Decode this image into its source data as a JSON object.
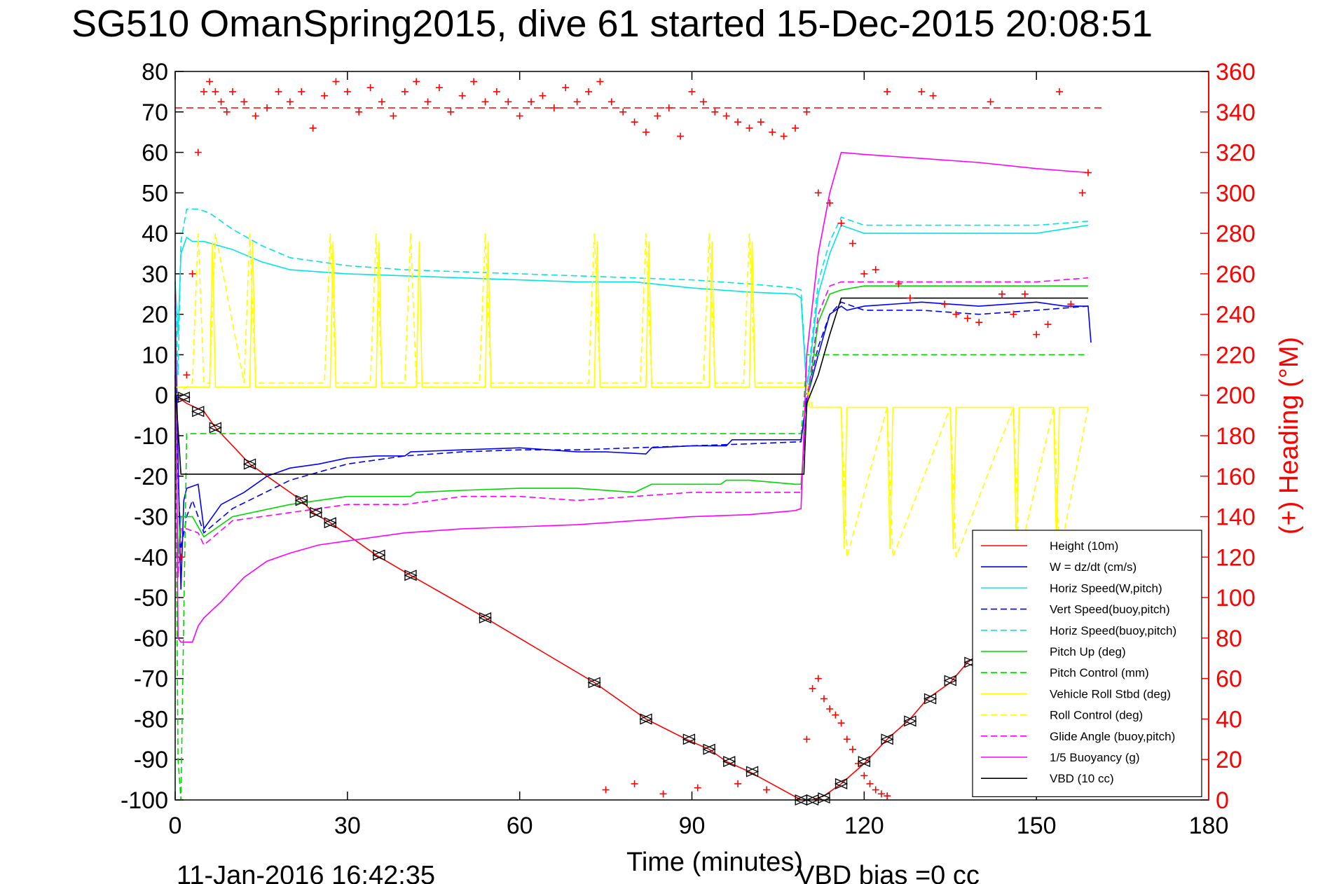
{
  "chart_data": {
    "type": "line",
    "title": "SG510 OmanSpring2015, dive 61 started 15-Dec-2015 20:08:51",
    "xlabel": "Time (minutes)",
    "ylabel": "",
    "y2label": "(+) Heading (°M)",
    "xlim": [
      0,
      180
    ],
    "ylim": [
      -100,
      80
    ],
    "y2lim": [
      0,
      360
    ],
    "xticks": [
      "0",
      "30",
      "60",
      "90",
      "120",
      "150",
      "180"
    ],
    "yticks": [
      "80",
      "70",
      "60",
      "50",
      "40",
      "30",
      "20",
      "10",
      "0",
      "-10",
      "-20",
      "-30",
      "-40",
      "-50",
      "-60",
      "-70",
      "-80",
      "-90",
      "-100"
    ],
    "y2ticks": [
      "360",
      "340",
      "320",
      "300",
      "280",
      "260",
      "240",
      "220",
      "200",
      "180",
      "160",
      "140",
      "120",
      "100",
      "80",
      "60",
      "40",
      "20",
      "0"
    ],
    "footer_left": "11-Jan-2016 16:42:35",
    "footer_right": "VBD bias =0 cc",
    "grid": false,
    "legend_position": "bottom-right",
    "heading_reference": 342,
    "series": [
      {
        "name": "Height (10m)",
        "color": "#ff0000",
        "style": "solid",
        "x": [
          0,
          0.5,
          1,
          1.5,
          2,
          5,
          7,
          13,
          22,
          24,
          27,
          35,
          41,
          54,
          73,
          82,
          89,
          93,
          96,
          100,
          109,
          110,
          111,
          113,
          116,
          120,
          124,
          128,
          131,
          135,
          138,
          142,
          146,
          150,
          153,
          157,
          159
        ],
        "y": [
          -1,
          -1,
          -1,
          -1.5,
          -2,
          -4,
          -8,
          -17,
          -26,
          -29,
          -31.5,
          -39.5,
          -44.5,
          -55,
          -71,
          -80,
          -85,
          -87.5,
          -90.5,
          -93,
          -100,
          -100,
          -100,
          -99,
          -96,
          -91,
          -85,
          -80,
          -75,
          -71,
          -66,
          -62,
          -57,
          -52,
          -47,
          -41,
          -37
        ]
      },
      {
        "name": "W = dz/dt (cm/s)",
        "color": "#0000ff",
        "style": "solid",
        "x": [
          0,
          0.5,
          1,
          1.5,
          2,
          4,
          5,
          8,
          12,
          16,
          20,
          25,
          30,
          35,
          40,
          41,
          50,
          60,
          70,
          75,
          82,
          83,
          90,
          96,
          97,
          105,
          109,
          110,
          112,
          114,
          116,
          117,
          120,
          130,
          140,
          150,
          155,
          159,
          159.5
        ],
        "y": [
          22,
          -15,
          -48,
          -26,
          -23,
          -22,
          -33,
          -27,
          -24,
          -20,
          -18,
          -17,
          -15.5,
          -15,
          -15,
          -14,
          -13.5,
          -13,
          -14,
          -14,
          -14.5,
          -13,
          -12.5,
          -12.5,
          -11,
          -11,
          -11,
          -1,
          10,
          20,
          22,
          21,
          22,
          23,
          22,
          23,
          22,
          22,
          13
        ]
      },
      {
        "name": "Horiz Speed(W,pitch)",
        "color": "#00e5e5",
        "style": "solid",
        "x": [
          0,
          0.5,
          1,
          2,
          3,
          5,
          10,
          15,
          20,
          30,
          40,
          50,
          60,
          70,
          80,
          90,
          100,
          108,
          109,
          110,
          112,
          114,
          116,
          118,
          120,
          130,
          140,
          150,
          159
        ],
        "y": [
          28,
          15,
          35,
          39,
          38,
          38,
          36,
          33,
          31,
          30,
          29.5,
          29,
          28.5,
          28,
          28,
          26.5,
          25.5,
          25,
          24,
          1,
          25,
          35,
          42,
          41,
          40,
          40,
          40,
          40,
          42
        ]
      },
      {
        "name": "Vert Speed(buoy,pitch)",
        "color": "#0000ff",
        "style": "dashed",
        "x": [
          0,
          0.5,
          1,
          2,
          3,
          5,
          10,
          20,
          30,
          40,
          50,
          60,
          70,
          80,
          90,
          100,
          109,
          110,
          112,
          114,
          116,
          120,
          130,
          140,
          150,
          159
        ],
        "y": [
          5,
          -20,
          -38,
          -30,
          -26,
          -34,
          -28,
          -21,
          -17,
          -15,
          -14,
          -13.5,
          -13.5,
          -13,
          -12.5,
          -12,
          -11.5,
          0,
          12,
          20,
          23,
          21,
          21,
          20,
          21,
          22
        ]
      },
      {
        "name": "Horiz Speed(buoy,pitch)",
        "color": "#00e5e5",
        "style": "dashed",
        "x": [
          0,
          0.5,
          1,
          2,
          4,
          6,
          10,
          15,
          20,
          30,
          40,
          50,
          60,
          70,
          80,
          90,
          100,
          108,
          109,
          110,
          112,
          114,
          116,
          118,
          120,
          130,
          140,
          150,
          159
        ],
        "y": [
          28,
          5,
          38,
          46,
          46,
          45,
          41,
          37,
          34,
          32,
          31,
          30.5,
          30,
          29.5,
          29,
          28.5,
          27.5,
          26.5,
          26,
          2,
          28,
          38,
          44,
          43,
          42,
          42,
          42,
          42,
          43
        ]
      },
      {
        "name": "Pitch Up (deg)",
        "color": "#00d800",
        "style": "solid",
        "x": [
          0,
          0.5,
          1,
          2,
          3,
          5,
          10,
          20,
          30,
          41,
          42,
          50,
          60,
          70,
          80,
          83,
          90,
          95,
          96,
          100,
          108,
          109,
          110,
          112,
          114,
          116,
          120,
          130,
          140,
          150,
          159
        ],
        "y": [
          0,
          -40,
          -30,
          -30,
          -30,
          -35,
          -30,
          -27,
          -25,
          -25,
          -24,
          -23.5,
          -23,
          -23,
          -24,
          -22,
          -22,
          -22,
          -21,
          -21,
          -22,
          -22,
          -3,
          18,
          25,
          26,
          27,
          27,
          27,
          27,
          27
        ]
      },
      {
        "name": "Pitch Control (mm)",
        "color": "#00d800",
        "style": "dashed",
        "x": [
          0,
          0.5,
          1,
          2,
          4,
          6,
          108,
          109,
          109.5,
          110,
          112,
          114,
          116,
          120,
          159
        ],
        "y": [
          0,
          -90,
          -100,
          -9.5,
          -9.5,
          -9.5,
          -9.5,
          -9.5,
          -2,
          10,
          10,
          10,
          10,
          10,
          10
        ]
      },
      {
        "name": "Vehicle Roll Stbd (deg)",
        "color": "#ffff00",
        "style": "solid",
        "x": [
          0,
          3,
          5,
          6,
          6.5,
          7,
          13,
          13.5,
          14,
          27,
          27.5,
          28,
          35,
          35.5,
          36,
          42,
          42.5,
          43,
          54,
          54.5,
          55,
          73,
          73.5,
          74,
          82,
          82.5,
          83,
          93,
          93.5,
          94,
          100,
          100.5,
          101,
          110,
          110.5,
          111,
          116,
          116.5,
          117,
          124,
          124.5,
          125,
          135,
          135.5,
          136,
          146,
          146.5,
          147,
          153,
          153.5,
          154,
          159
        ],
        "y": [
          2,
          2,
          2,
          2,
          38,
          2,
          2,
          38,
          2,
          2,
          38,
          2,
          2,
          38,
          2,
          2,
          38,
          2,
          2,
          38,
          2,
          2,
          38,
          2,
          2,
          38,
          2,
          2,
          38,
          2,
          2,
          38,
          2,
          2,
          -3,
          -3,
          -3,
          -38,
          -3,
          -3,
          -38,
          -3,
          -3,
          -38,
          -3,
          -3,
          -38,
          -3,
          -3,
          -38,
          -3,
          -3
        ]
      },
      {
        "name": "Roll Control (deg)",
        "color": "#ffff00",
        "style": "dashed",
        "x": [
          0,
          3,
          4,
          5,
          6,
          7,
          12,
          13,
          14,
          26,
          27,
          28,
          34,
          35,
          36,
          40,
          41,
          42,
          53,
          54,
          55,
          72,
          73,
          74,
          81,
          82,
          83,
          92,
          93,
          94,
          99,
          100,
          101,
          110,
          111,
          116,
          117,
          124,
          125,
          135,
          136,
          146,
          147,
          153,
          154,
          159
        ],
        "y": [
          0,
          3,
          40,
          3,
          3,
          40,
          3,
          40,
          3,
          3,
          40,
          3,
          3,
          40,
          3,
          3,
          40,
          3,
          3,
          40,
          3,
          3,
          40,
          3,
          3,
          40,
          3,
          3,
          40,
          3,
          3,
          40,
          3,
          3,
          -3,
          -3,
          -40,
          -3,
          -40,
          -3,
          -40,
          -3,
          -40,
          -3,
          -40,
          -3
        ]
      },
      {
        "name": "Glide Angle (buoy,pitch)",
        "color": "#ff00ff",
        "style": "dashed",
        "x": [
          0,
          0.5,
          1,
          2,
          4,
          5,
          10,
          20,
          30,
          40,
          50,
          60,
          70,
          80,
          90,
          100,
          108,
          109,
          110,
          112,
          114,
          116,
          120,
          130,
          140,
          150,
          159
        ],
        "y": [
          0,
          -45,
          -33,
          -33,
          -34,
          -37,
          -31,
          -29,
          -27,
          -27,
          -25,
          -25,
          -26,
          -25,
          -24,
          -24,
          -24,
          -24,
          -2,
          20,
          27,
          28,
          28,
          28,
          28,
          28,
          29
        ]
      },
      {
        "name": "1/5 Buoyancy (g)",
        "color": "#ff00ff",
        "style": "solid",
        "x": [
          0,
          0.5,
          1,
          3,
          4,
          5,
          8,
          12,
          16,
          20,
          25,
          30,
          40,
          50,
          60,
          70,
          80,
          90,
          100,
          108,
          109,
          110,
          112,
          114,
          116,
          120,
          130,
          140,
          150,
          159
        ],
        "y": [
          25,
          -60,
          -61,
          -61,
          -57,
          -55,
          -51,
          -45,
          -41,
          -39,
          -37,
          -36,
          -34,
          -33,
          -32.5,
          -32,
          -31,
          -30,
          -29.5,
          -28.5,
          -28,
          10,
          35,
          50,
          60,
          59.5,
          58.5,
          57.5,
          56,
          55
        ]
      },
      {
        "name": "VBD (10 cc)",
        "color": "#000000",
        "style": "solid",
        "x": [
          0,
          0.5,
          1,
          1.5,
          2,
          50,
          100,
          109,
          109.5,
          110,
          112,
          114,
          116,
          120,
          130,
          140,
          150,
          159
        ],
        "y": [
          2,
          -8,
          -19.5,
          -19.5,
          -19.5,
          -19.5,
          -19.5,
          -19.5,
          -19.5,
          -2,
          5,
          15,
          24,
          24,
          24,
          24,
          24,
          24
        ]
      }
    ],
    "heading_points": {
      "name": "(+) Heading",
      "color": "#ff0000",
      "marker": "+",
      "x": [
        1,
        2,
        3,
        4,
        5,
        6,
        7,
        8,
        9,
        10,
        12,
        14,
        16,
        18,
        20,
        22,
        24,
        26,
        28,
        30,
        32,
        34,
        36,
        38,
        40,
        42,
        44,
        46,
        48,
        50,
        52,
        54,
        56,
        58,
        60,
        62,
        64,
        66,
        68,
        70,
        72,
        74,
        76,
        78,
        80,
        82,
        84,
        86,
        88,
        90,
        92,
        94,
        96,
        98,
        100,
        102,
        104,
        106,
        108,
        110,
        112,
        114,
        116,
        118,
        120,
        122,
        124,
        126,
        128,
        130,
        132,
        134,
        136,
        138,
        140,
        142,
        144,
        146,
        148,
        150,
        152,
        154,
        156,
        158,
        159
      ],
      "y": [
        120,
        210,
        260,
        320,
        350,
        355,
        350,
        345,
        340,
        350,
        345,
        338,
        342,
        350,
        345,
        350,
        332,
        348,
        355,
        350,
        340,
        352,
        345,
        338,
        350,
        355,
        345,
        352,
        340,
        348,
        355,
        345,
        350,
        345,
        338,
        345,
        348,
        342,
        352,
        345,
        350,
        355,
        345,
        340,
        335,
        330,
        338,
        342,
        328,
        350,
        345,
        340,
        338,
        335,
        332,
        335,
        330,
        328,
        332,
        340,
        300,
        295,
        285,
        275,
        260,
        262,
        350,
        255,
        248,
        350,
        348,
        245,
        240,
        238,
        236,
        345,
        250,
        240,
        250,
        230,
        235,
        350,
        245,
        300,
        310
      ],
      "low_x": [
        75,
        80,
        85,
        91,
        98,
        103,
        110,
        111,
        112,
        113,
        114,
        115,
        116,
        117,
        118,
        119,
        120,
        121,
        122,
        123,
        124
      ],
      "low_y": [
        5,
        8,
        3,
        6,
        8,
        5,
        30,
        55,
        60,
        50,
        45,
        42,
        38,
        30,
        25,
        18,
        12,
        8,
        5,
        3,
        2
      ]
    },
    "markers": {
      "type": "triangle-pairs",
      "color": "#000000",
      "x": [
        1.5,
        4,
        7,
        13,
        22,
        24.5,
        27,
        35.5,
        41,
        54,
        73,
        82,
        89.5,
        93,
        96.5,
        100.5,
        109,
        111,
        113,
        116,
        120,
        124,
        128,
        131.5,
        135,
        138.5
      ],
      "y": [
        -0.5,
        -4,
        -8,
        -17,
        -26,
        -29,
        -31.5,
        -39.5,
        -44.5,
        -55,
        -71,
        -80,
        -85,
        -87.5,
        -90.5,
        -93,
        -100,
        -100,
        -99.5,
        -96,
        -90.5,
        -85,
        -80.5,
        -75,
        -70.5,
        -66
      ]
    }
  }
}
